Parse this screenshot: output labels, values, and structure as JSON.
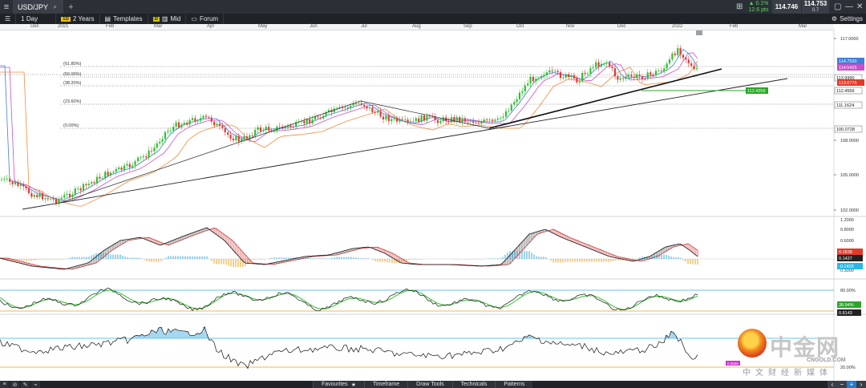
{
  "titlebar": {
    "symbol": "USD/JPY",
    "change_pct": "▲ 0.1%",
    "change_pips": "12.6 pts",
    "bid": "114.746",
    "ask": "114.753",
    "spread": "0.7"
  },
  "toolbar": {
    "interval": "1 Day",
    "range_badge": "1D",
    "range": "2 Years",
    "templates": "Templates",
    "mid_badge": "D",
    "mid": "Mid",
    "forum": "Forum",
    "settings": "Settings"
  },
  "months": [
    "Dec",
    "2021",
    "Feb",
    "Mar",
    "Apr",
    "May",
    "Jun",
    "Jul",
    "Aug",
    "Sep",
    "Oct",
    "Nov",
    "Dec",
    "2022",
    "Feb",
    "Mar"
  ],
  "price_axis": {
    "ticks": [
      "117.0000",
      "108.0000",
      "105.0000",
      "102.0000"
    ],
    "fib_labels": [
      "(61.80%)",
      "(50.00%)",
      "(38.20%)",
      "(23.60%)",
      "(0.00%)"
    ],
    "price_tags": [
      "114.7530",
      "114.5425",
      "113.9990",
      "113.0775",
      "112.4556",
      "112.4259",
      "111.1624",
      "100.0728"
    ]
  },
  "macd_axis": {
    "ticks": [
      "1.2000",
      "0.8000",
      "0.6000",
      "0.3000"
    ],
    "tags": [
      "0.2838",
      "0.1427",
      "-0.1428"
    ]
  },
  "stoch_axis": {
    "ticks": [
      "80.00%"
    ],
    "tags": [
      "38.94%",
      "0.8143"
    ]
  },
  "rsi_axis": {
    "ticks": [
      "20.00%"
    ],
    "tags": [
      "0.3828"
    ]
  },
  "bottombar": {
    "tabs": [
      "Favourites",
      "Timeframe",
      "Draw Tools",
      "Technicals",
      "Patterns"
    ]
  },
  "watermark": {
    "title": "中金网",
    "url": "CNGOLD.COM",
    "tagline": "中文财经新媒体"
  },
  "colors": {
    "up": "#2ec02e",
    "down": "#e23a3a",
    "ma_fast": "#3f7fd8",
    "ma_mid": "#c94fc9",
    "ma_slow": "#f08a3c",
    "tag_green": "#2aa52a",
    "tag_red": "#e03a2a",
    "tag_magenta": "#d030d0",
    "tag_cyan": "#28b8e8"
  }
}
